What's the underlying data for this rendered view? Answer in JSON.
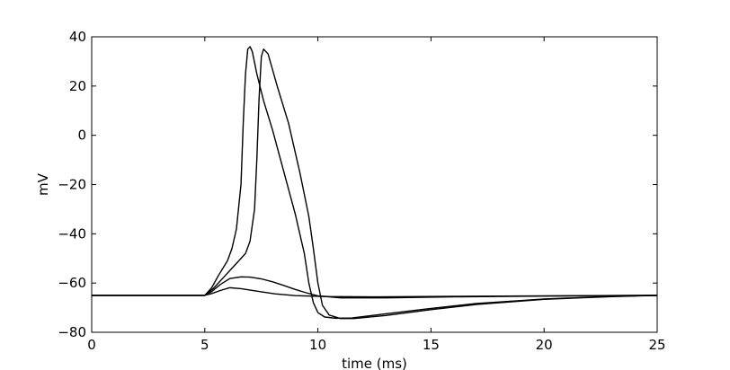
{
  "chart_data": {
    "type": "line",
    "title": "",
    "xlabel": "time (ms)",
    "ylabel": "mV",
    "xlim": [
      0,
      25
    ],
    "ylim": [
      -80,
      40
    ],
    "xticks": [
      0,
      5,
      10,
      15,
      20,
      25
    ],
    "yticks": [
      -80,
      -60,
      -40,
      -20,
      0,
      20,
      40
    ],
    "xtick_labels": [
      "0",
      "5",
      "10",
      "15",
      "20",
      "25"
    ],
    "ytick_labels": [
      "−80",
      "−60",
      "−40",
      "−20",
      "0",
      "20",
      "40"
    ],
    "grid": false,
    "legend": "none",
    "line_color": "#000000",
    "series": [
      {
        "x": [
          0,
          5,
          5.3,
          5.7,
          6.1,
          6.6,
          7.3,
          8.1,
          9.0,
          10.5,
          12.5,
          16,
          20,
          25
        ],
        "y": [
          -65,
          -65,
          -64.3,
          -63,
          -61.9,
          -62.3,
          -63.3,
          -64.4,
          -65.1,
          -65.5,
          -65.6,
          -65.4,
          -65.2,
          -65
        ]
      },
      {
        "x": [
          0,
          5,
          5.3,
          5.7,
          6.1,
          6.6,
          7.0,
          7.5,
          8.0,
          8.5,
          9.0,
          9.5,
          10.0,
          11,
          13,
          16,
          20,
          25
        ],
        "y": [
          -65,
          -65,
          -63.5,
          -60.5,
          -58.2,
          -57.5,
          -57.6,
          -58.3,
          -59.5,
          -61.0,
          -62.6,
          -64.0,
          -65.2,
          -66.0,
          -66.0,
          -65.6,
          -65.3,
          -65
        ]
      },
      {
        "x": [
          0,
          5,
          5.3,
          5.6,
          6.0,
          6.2,
          6.4,
          6.6,
          6.7,
          6.8,
          6.9,
          7.0,
          7.1,
          7.3,
          7.6,
          8.0,
          8.5,
          9.0,
          9.4,
          9.6,
          9.8,
          10.0,
          10.3,
          10.8,
          11.5,
          13,
          15,
          17,
          20,
          23,
          25
        ],
        "y": [
          -65,
          -65,
          -62,
          -57,
          -51,
          -46,
          -38,
          -20,
          5,
          25,
          35,
          36,
          34,
          25,
          14,
          2,
          -15,
          -32,
          -48,
          -60,
          -68,
          -72,
          -73.8,
          -74.3,
          -74.2,
          -72.5,
          -70.3,
          -68.3,
          -66.5,
          -65.4,
          -65
        ]
      },
      {
        "x": [
          0,
          5,
          5.4,
          5.8,
          6.3,
          6.8,
          7.0,
          7.2,
          7.3,
          7.4,
          7.5,
          7.6,
          7.8,
          8.2,
          8.7,
          9.2,
          9.6,
          9.8,
          10.0,
          10.2,
          10.5,
          11.0,
          11.6,
          13,
          15,
          17,
          20,
          23,
          25
        ],
        "y": [
          -65,
          -65,
          -62,
          -58,
          -53,
          -48,
          -43,
          -30,
          -10,
          15,
          32,
          35,
          33,
          20,
          5,
          -15,
          -33,
          -46,
          -60,
          -69,
          -73,
          -74.4,
          -74.4,
          -73.2,
          -70.8,
          -68.7,
          -66.6,
          -65.5,
          -65
        ]
      }
    ]
  }
}
